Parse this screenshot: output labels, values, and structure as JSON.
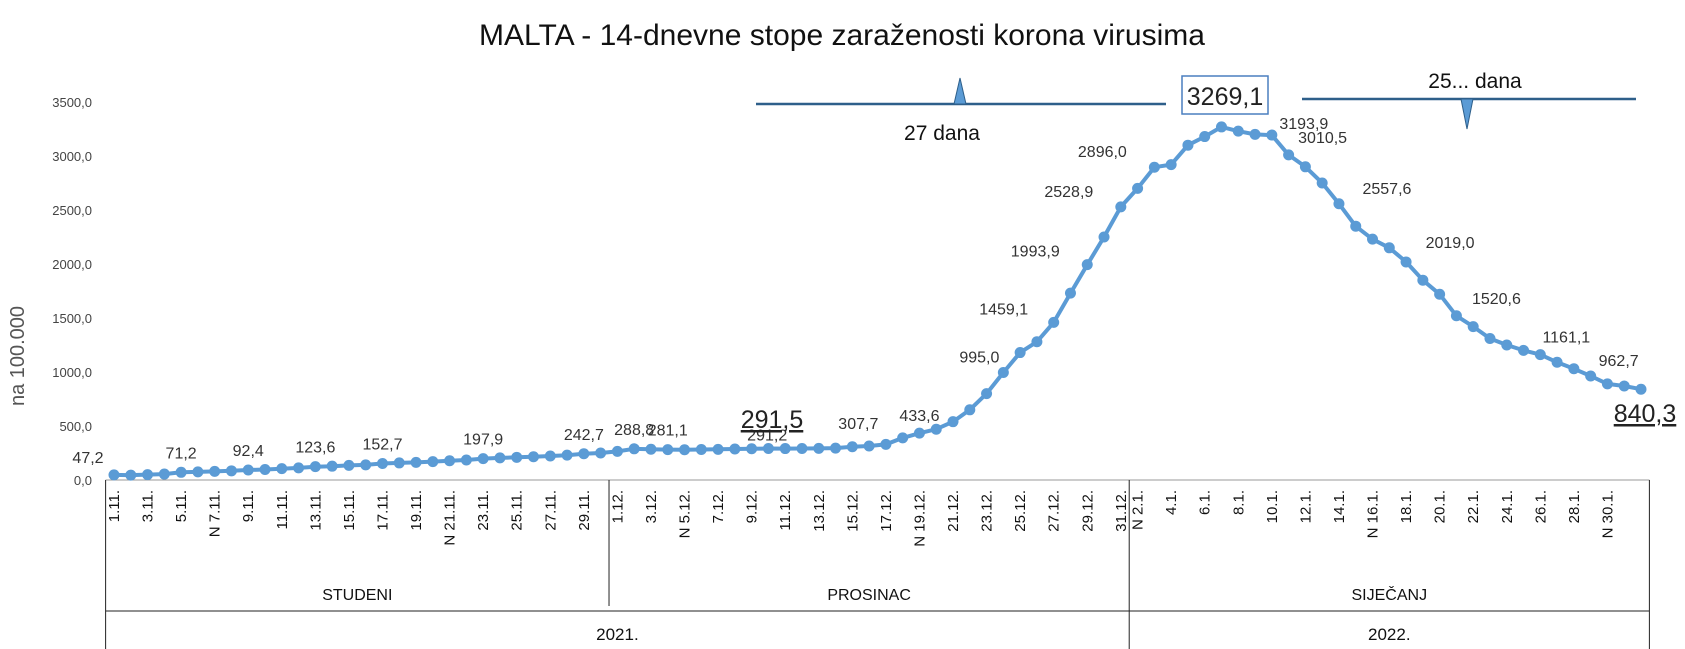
{
  "chart_data": {
    "type": "line",
    "title": "MALTA - 14-dnevne stope zaraženosti korona virusima",
    "ylabel": "na 100.000",
    "xlabel": "",
    "ylim": [
      0,
      3500
    ],
    "yticks": [
      "0,0",
      "500,0",
      "1000,0",
      "1500,0",
      "2000,0",
      "2500,0",
      "3000,0",
      "3500,0"
    ],
    "grid": false,
    "legend": "none",
    "line_color": "#5b9bd5",
    "axis_color": "#222222",
    "months": [
      {
        "label": "STUDENI",
        "year": "2021."
      },
      {
        "label": "PROSINAC",
        "year": "2021."
      },
      {
        "label": "SIJEČANJ",
        "year": "2022."
      }
    ],
    "years": [
      "2021.",
      "2022."
    ],
    "x": [
      "1.11.",
      "2.11.",
      "3.11.",
      "4.11.",
      "5.11.",
      "6.11.",
      "7.11.",
      "8.11.",
      "9.11.",
      "10.11.",
      "11.11.",
      "12.11.",
      "13.11.",
      "14.11.",
      "15.11.",
      "16.11.",
      "17.11.",
      "18.11.",
      "19.11.",
      "20.11.",
      "21.11.",
      "22.11.",
      "23.11.",
      "24.11.",
      "25.11.",
      "26.11.",
      "27.11.",
      "28.11.",
      "29.11.",
      "30.11.",
      "1.12.",
      "2.12.",
      "3.12.",
      "4.12.",
      "5.12.",
      "6.12.",
      "7.12.",
      "8.12.",
      "9.12.",
      "10.12.",
      "11.12.",
      "12.12.",
      "13.12.",
      "14.12.",
      "15.12.",
      "16.12.",
      "17.12.",
      "18.12.",
      "19.12.",
      "20.12.",
      "21.12.",
      "22.12.",
      "23.12.",
      "24.12.",
      "25.12.",
      "26.12.",
      "27.12.",
      "28.12.",
      "29.12.",
      "30.12.",
      "31.12.",
      "1.1.",
      "2.1.",
      "3.1.",
      "4.1.",
      "5.1.",
      "6.1.",
      "7.1.",
      "8.1.",
      "9.1.",
      "10.1.",
      "11.1.",
      "12.1.",
      "13.1.",
      "14.1.",
      "15.1.",
      "16.1.",
      "17.1.",
      "18.1.",
      "19.1.",
      "20.1.",
      "21.1.",
      "22.1.",
      "23.1.",
      "24.1.",
      "25.1.",
      "26.1.",
      "27.1.",
      "28.1.",
      "29.1.",
      "30.1.",
      "31.1."
    ],
    "tick_labels": [
      {
        "i": 0,
        "text": "1.11."
      },
      {
        "i": 2,
        "text": "3.11."
      },
      {
        "i": 4,
        "text": "5.11."
      },
      {
        "i": 6,
        "text": "N  7.11."
      },
      {
        "i": 8,
        "text": "9.11."
      },
      {
        "i": 10,
        "text": "11.11."
      },
      {
        "i": 12,
        "text": "13.11."
      },
      {
        "i": 14,
        "text": "15.11."
      },
      {
        "i": 16,
        "text": "17.11."
      },
      {
        "i": 18,
        "text": "19.11."
      },
      {
        "i": 20,
        "text": "N 21.11."
      },
      {
        "i": 22,
        "text": "23.11."
      },
      {
        "i": 24,
        "text": "25.11."
      },
      {
        "i": 26,
        "text": "27.11."
      },
      {
        "i": 28,
        "text": "29.11."
      },
      {
        "i": 30,
        "text": "1.12."
      },
      {
        "i": 32,
        "text": "3.12."
      },
      {
        "i": 34,
        "text": "N  5.12."
      },
      {
        "i": 36,
        "text": "7.12."
      },
      {
        "i": 38,
        "text": "9.12."
      },
      {
        "i": 40,
        "text": "11.12."
      },
      {
        "i": 42,
        "text": "13.12."
      },
      {
        "i": 44,
        "text": "15.12."
      },
      {
        "i": 46,
        "text": "17.12."
      },
      {
        "i": 48,
        "text": "N 19.12."
      },
      {
        "i": 50,
        "text": "21.12."
      },
      {
        "i": 52,
        "text": "23.12."
      },
      {
        "i": 54,
        "text": "25.12."
      },
      {
        "i": 56,
        "text": "27.12."
      },
      {
        "i": 58,
        "text": "29.12."
      },
      {
        "i": 60,
        "text": "31.12."
      },
      {
        "i": 61,
        "text": "N  2.1."
      },
      {
        "i": 63,
        "text": "4.1."
      },
      {
        "i": 65,
        "text": "6.1."
      },
      {
        "i": 67,
        "text": "8.1."
      },
      {
        "i": 69,
        "text": "10.1."
      },
      {
        "i": 71,
        "text": "12.1."
      },
      {
        "i": 73,
        "text": "14.1."
      },
      {
        "i": 75,
        "text": "N  16.1."
      },
      {
        "i": 77,
        "text": "18.1."
      },
      {
        "i": 79,
        "text": "20.1."
      },
      {
        "i": 81,
        "text": "22.1."
      },
      {
        "i": 83,
        "text": "24.1."
      },
      {
        "i": 85,
        "text": "26.1."
      },
      {
        "i": 87,
        "text": "28.1."
      },
      {
        "i": 89,
        "text": "N  30.1."
      }
    ],
    "series": [
      {
        "values": [
          47.2,
          45,
          50,
          55,
          71.2,
          75,
          80,
          85,
          92.4,
          97,
          105,
          112,
          123.6,
          128,
          135,
          140,
          152.7,
          158,
          163,
          170,
          178,
          185,
          197.9,
          205,
          210,
          215,
          222,
          230,
          242.7,
          250,
          265,
          288.8,
          285,
          281.1,
          280,
          282,
          284,
          287,
          289,
          291.5,
          291.2,
          292,
          293,
          295,
          307.7,
          315,
          330,
          390,
          433.6,
          470,
          540,
          650,
          800,
          995.0,
          1180,
          1280,
          1459.1,
          1730,
          1993.9,
          2250,
          2528.9,
          2700,
          2896.0,
          2920,
          3100,
          3180,
          3269.1,
          3230,
          3200,
          3193.9,
          3010.5,
          2900,
          2750,
          2557.6,
          2350,
          2230,
          2150,
          2019.0,
          1850,
          1720,
          1520.6,
          1420,
          1310,
          1250,
          1200,
          1161.1,
          1090,
          1030,
          962.7,
          890,
          870,
          840.3
        ]
      }
    ],
    "data_labels": [
      {
        "i": 0,
        "text": "47,2"
      },
      {
        "i": 4,
        "text": "71,2"
      },
      {
        "i": 8,
        "text": "92,4"
      },
      {
        "i": 12,
        "text": "123,6"
      },
      {
        "i": 16,
        "text": "152,7"
      },
      {
        "i": 22,
        "text": "197,9"
      },
      {
        "i": 28,
        "text": "242,7"
      },
      {
        "i": 31,
        "text": "288,8"
      },
      {
        "i": 33,
        "text": "281,1"
      },
      {
        "i": 40,
        "text": "291,2"
      },
      {
        "i": 44,
        "text": "307,7"
      },
      {
        "i": 48,
        "text": "433,6"
      },
      {
        "i": 53,
        "text": "995,0"
      },
      {
        "i": 56,
        "text": "1459,1"
      },
      {
        "i": 58,
        "text": "1993,9"
      },
      {
        "i": 60,
        "text": "2528,9"
      },
      {
        "i": 62,
        "text": "2896,0"
      },
      {
        "i": 69,
        "text": "3193,9"
      },
      {
        "i": 70,
        "text": "3010,5"
      },
      {
        "i": 73,
        "text": "2557,6"
      },
      {
        "i": 77,
        "text": "2019,0"
      },
      {
        "i": 80,
        "text": "1520,6"
      },
      {
        "i": 85,
        "text": "1161,1"
      },
      {
        "i": 88,
        "text": "962,7"
      }
    ],
    "annotations": {
      "left_bracket_label": "27 dana",
      "right_bracket_label": "25... dana",
      "peak_box": "3269,1",
      "mid_highlight": "291,5",
      "end_highlight": "840,3"
    }
  }
}
